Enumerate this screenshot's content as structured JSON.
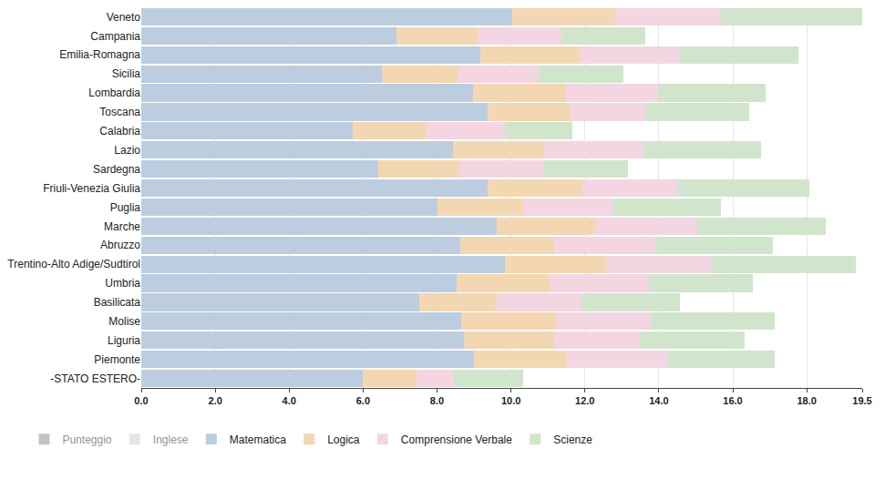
{
  "chart_data": {
    "type": "bar",
    "orientation": "horizontal",
    "stacked": true,
    "grid": true,
    "legend": "bottom",
    "categories": [
      "Veneto",
      "Campania",
      "Emilia-Romagna",
      "Sicilia",
      "Lombardia",
      "Toscana",
      "Calabria",
      "Lazio",
      "Sardegna",
      "Friuli-Venezia Giulia",
      "Puglia",
      "Marche",
      "Abruzzo",
      "Trentino-Alto Adige/Sudtirol",
      "Umbria",
      "Basilicata",
      "Molise",
      "Liguria",
      "Piemonte",
      "-STATO ESTERO-"
    ],
    "series": [
      {
        "name": "Punteggio",
        "color": "#888888",
        "values": [
          null,
          null,
          null,
          null,
          null,
          null,
          null,
          null,
          null,
          null,
          null,
          null,
          null,
          null,
          null,
          null,
          null,
          null,
          null,
          null
        ]
      },
      {
        "name": "Inglese",
        "color": "#cccccc",
        "values": [
          null,
          null,
          null,
          null,
          null,
          null,
          null,
          null,
          null,
          null,
          null,
          null,
          null,
          null,
          null,
          null,
          null,
          null,
          null,
          null
        ]
      },
      {
        "name": "Matematica",
        "color": "#bccddf",
        "values": [
          10.03,
          6.9,
          9.17,
          6.5,
          8.97,
          9.37,
          5.73,
          8.43,
          6.4,
          9.37,
          8.01,
          9.61,
          8.63,
          9.84,
          8.53,
          7.51,
          8.65,
          8.72,
          9.0,
          5.98
        ]
      },
      {
        "name": "Logica",
        "color": "#f3d7b3",
        "values": [
          2.8,
          2.2,
          2.69,
          2.05,
          2.52,
          2.25,
          1.98,
          2.47,
          2.2,
          2.57,
          2.32,
          2.67,
          2.54,
          2.76,
          2.52,
          2.1,
          2.57,
          2.45,
          2.52,
          1.46
        ]
      },
      {
        "name": "Comprensione Verbale",
        "color": "#f3d6e2",
        "values": [
          2.84,
          2.27,
          2.72,
          2.2,
          2.5,
          2.02,
          2.13,
          2.69,
          2.3,
          2.57,
          2.42,
          2.75,
          2.74,
          2.82,
          2.67,
          2.3,
          2.57,
          2.32,
          2.74,
          1.01
        ]
      },
      {
        "name": "Scienze",
        "color": "#d1e5cc",
        "values": [
          3.83,
          2.27,
          3.19,
          2.3,
          2.89,
          2.8,
          1.83,
          3.17,
          2.27,
          3.56,
          2.94,
          3.48,
          3.17,
          3.91,
          2.81,
          2.67,
          3.34,
          2.82,
          2.87,
          1.88
        ]
      }
    ],
    "xlim": [
      0,
      19.5
    ],
    "xticks": [
      {
        "value": 0,
        "label": "0.0"
      },
      {
        "value": 2,
        "label": "2.0"
      },
      {
        "value": 4,
        "label": "4.0"
      },
      {
        "value": 6,
        "label": "6.0"
      },
      {
        "value": 8,
        "label": "8.0"
      },
      {
        "value": 10,
        "label": "10.0"
      },
      {
        "value": 12,
        "label": "12.0"
      },
      {
        "value": 14,
        "label": "14.0"
      },
      {
        "value": 16,
        "label": "16.0"
      },
      {
        "value": 18,
        "label": "18.0"
      },
      19.5
    ]
  }
}
